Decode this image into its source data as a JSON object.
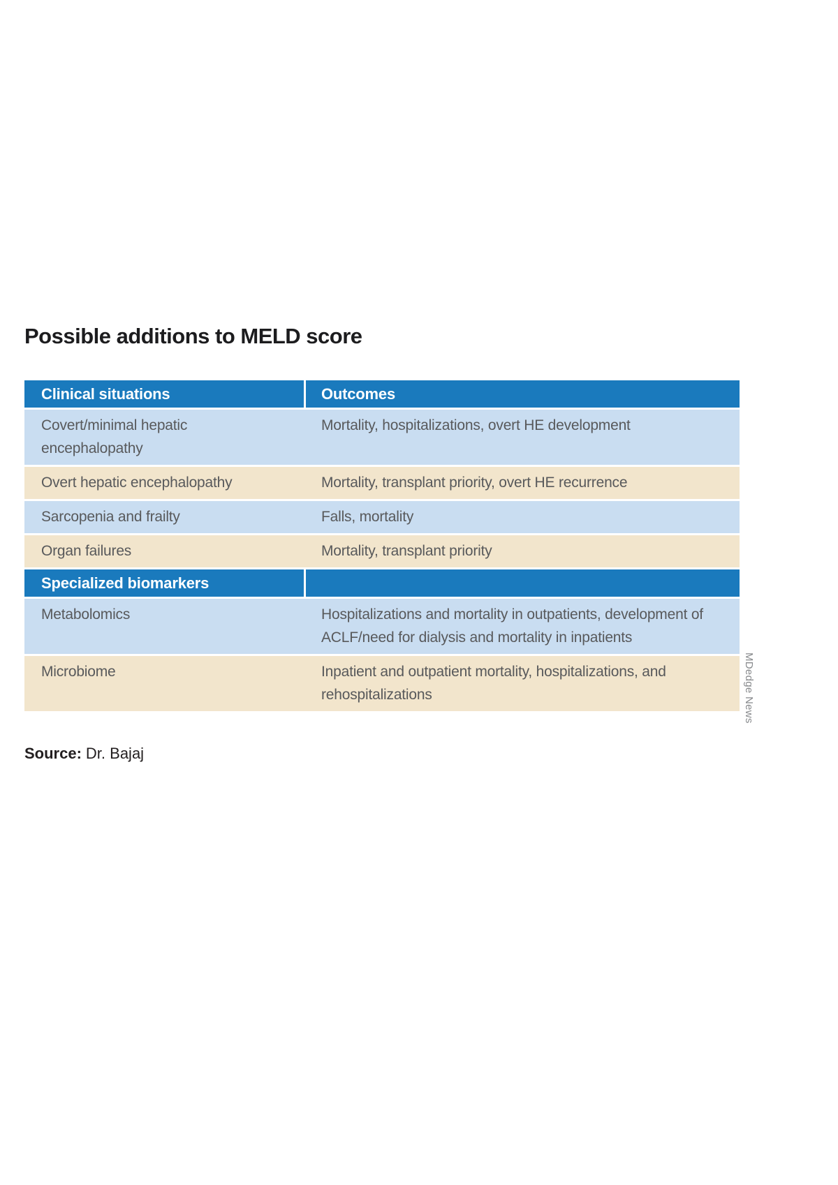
{
  "title": "Possible additions to MELD score",
  "source_label": "Source:",
  "source_value": "Dr. Bajaj",
  "credit": "MDedge News",
  "colors": {
    "header_blue": "#1a7abd",
    "row_blue": "#c9ddf1",
    "row_beige": "#f2e5cc",
    "cell_text": "#58595b",
    "header_text": "#ffffff"
  },
  "chart_data": {
    "type": "table",
    "title": "Possible additions to MELD score",
    "columns": [
      "Clinical situations",
      "Outcomes"
    ],
    "sections": [
      {
        "name": "Clinical situations",
        "rows": [
          [
            "Covert/minimal hepatic encephalopathy",
            "Mortality, hospitalizations, overt HE development"
          ],
          [
            "Overt hepatic encephalopathy",
            "Mortality, transplant priority, overt HE recurrence"
          ],
          [
            "Sarcopenia and frailty",
            "Falls, mortality"
          ],
          [
            "Organ failures",
            "Mortality, transplant priority"
          ]
        ]
      },
      {
        "name": "Specialized biomarkers",
        "rows": [
          [
            "Metabolomics",
            "Hospitalizations and mortality in outpatients, development of ACLF/need for dialysis and mortality in inpatients"
          ],
          [
            "Microbiome",
            "Inpatient and outpatient mortality, hospitalizations, and rehospitalizations"
          ]
        ]
      }
    ],
    "source": "Dr. Bajaj",
    "credit": "MDedge News",
    "layout": {
      "row_shading_alternating": [
        "blue",
        "beige"
      ],
      "header_style": "blue bar with white bold text",
      "grid": false
    }
  }
}
